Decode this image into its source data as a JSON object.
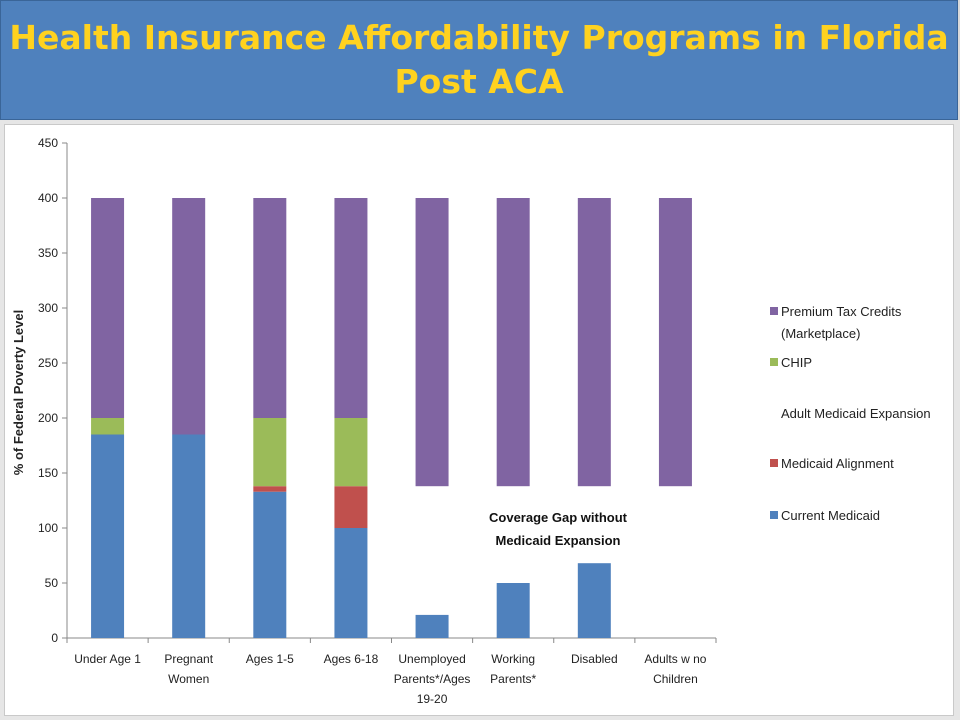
{
  "title": {
    "line1": "Health Insurance Affordability Programs in Florida",
    "line2": "Post ACA"
  },
  "chart_data": {
    "type": "bar",
    "stacked": true,
    "ylabel": "% of Federal Poverty Level",
    "ylim": [
      0,
      450
    ],
    "yticks": [
      0,
      50,
      100,
      150,
      200,
      250,
      300,
      350,
      400,
      450
    ],
    "categories": [
      [
        "Under Age 1"
      ],
      [
        "Pregnant",
        "Women"
      ],
      [
        "Ages 1-5"
      ],
      [
        "Ages 6-18"
      ],
      [
        "Unemployed",
        "Parents*/Ages",
        "19-20"
      ],
      [
        "Working",
        "Parents*"
      ],
      [
        "Disabled"
      ],
      [
        "Adults w no",
        "Children"
      ]
    ],
    "series": [
      {
        "name": "Current Medicaid",
        "color": "#4f81bd",
        "base": [
          0,
          0,
          0,
          0,
          0,
          0,
          0,
          0
        ],
        "top": [
          185,
          185,
          133,
          100,
          21,
          50,
          68,
          0
        ]
      },
      {
        "name": "Medicaid Alignment",
        "color": "#c0504d",
        "base": [
          185,
          185,
          133,
          100,
          21,
          50,
          68,
          0
        ],
        "top": [
          185,
          185,
          138,
          138,
          21,
          50,
          68,
          0
        ]
      },
      {
        "name": "Adult Medicaid Expansion",
        "color": "#ffffff",
        "base": [
          185,
          185,
          138,
          138,
          21,
          50,
          68,
          0
        ],
        "top": [
          185,
          185,
          138,
          138,
          21,
          50,
          68,
          0
        ]
      },
      {
        "name": "CHIP",
        "color": "#9bbb59",
        "base": [
          185,
          185,
          138,
          138,
          21,
          50,
          68,
          0
        ],
        "top": [
          200,
          185,
          200,
          200,
          21,
          50,
          68,
          0
        ]
      },
      {
        "name": "Premium Tax Credits (Marketplace)",
        "color": "#8064a2",
        "base": [
          200,
          185,
          200,
          200,
          138,
          138,
          138,
          138
        ],
        "top": [
          400,
          400,
          400,
          400,
          400,
          400,
          400,
          400
        ]
      }
    ],
    "legend": {
      "placement": "right",
      "entries": [
        {
          "label": [
            "Premium Tax Credits",
            "(Marketplace)"
          ],
          "color": "#8064a2"
        },
        {
          "label": [
            "CHIP"
          ],
          "color": "#9bbb59"
        },
        {
          "label": [
            "Adult Medicaid Expansion"
          ],
          "color": "#ffffff"
        },
        {
          "label": [
            "Medicaid Alignment"
          ],
          "color": "#c0504d"
        },
        {
          "label": [
            "Current Medicaid"
          ],
          "color": "#4f81bd"
        }
      ]
    },
    "annotation": {
      "lines": [
        "Coverage  Gap without",
        "Medicaid Expansion"
      ]
    },
    "grid": false
  }
}
